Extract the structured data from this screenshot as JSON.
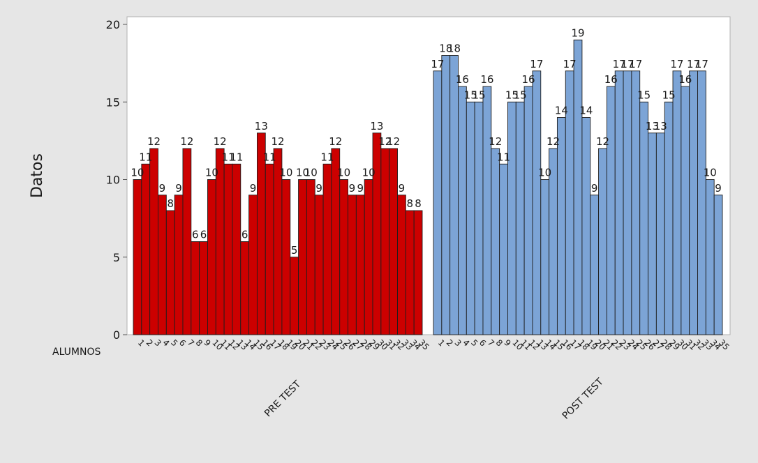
{
  "chart_data": {
    "type": "bar",
    "ylabel": "Datos",
    "xlabel": "",
    "ylim": [
      0,
      20
    ],
    "yticks": [
      0,
      5,
      10,
      15,
      20
    ],
    "x_row_label": "ALUMNOS",
    "grid": false,
    "series": [
      {
        "name": "PRE TEST",
        "color": "#cc0000",
        "categories": [
          "1",
          "2",
          "3",
          "4",
          "5",
          "6",
          "7",
          "8",
          "9",
          "10",
          "11",
          "12",
          "13",
          "14",
          "15",
          "16",
          "17",
          "18",
          "19",
          "20",
          "21",
          "22",
          "23",
          "24",
          "25",
          "26",
          "27",
          "28",
          "29",
          "30",
          "31",
          "32",
          "33",
          "34",
          "35"
        ],
        "values": [
          10,
          11,
          12,
          9,
          8,
          9,
          12,
          6,
          6,
          10,
          12,
          11,
          11,
          6,
          9,
          13,
          11,
          12,
          10,
          5,
          10,
          10,
          9,
          11,
          12,
          10,
          9,
          9,
          10,
          13,
          12,
          12,
          9,
          8,
          8
        ]
      },
      {
        "name": "POST TEST",
        "color": "#7ca4d6",
        "categories": [
          "1",
          "2",
          "3",
          "4",
          "5",
          "6",
          "7",
          "8",
          "9",
          "10",
          "11",
          "12",
          "13",
          "14",
          "15",
          "16",
          "17",
          "18",
          "19",
          "20",
          "21",
          "22",
          "23",
          "24",
          "25",
          "26",
          "27",
          "28",
          "29",
          "30",
          "31",
          "32",
          "33",
          "34",
          "35"
        ],
        "values": [
          17,
          18,
          18,
          16,
          15,
          15,
          16,
          12,
          11,
          15,
          15,
          16,
          17,
          10,
          12,
          14,
          17,
          19,
          14,
          9,
          12,
          16,
          17,
          17,
          17,
          15,
          13,
          13,
          15,
          17,
          16,
          17,
          17,
          10,
          9
        ]
      }
    ]
  }
}
